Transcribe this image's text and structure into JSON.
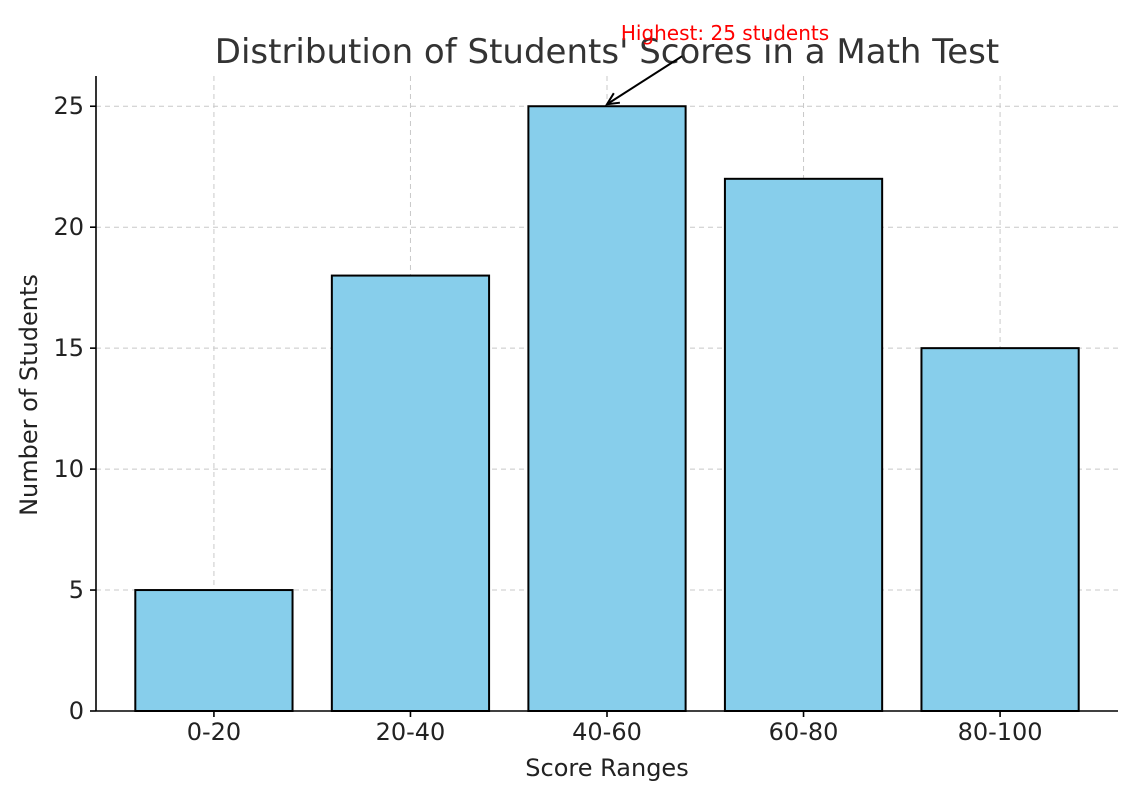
{
  "chart_data": {
    "type": "bar",
    "title": "Distribution of Students' Scores in a Math Test",
    "xlabel": "Score Ranges",
    "ylabel": "Number of Students",
    "categories": [
      "0-20",
      "20-40",
      "40-60",
      "60-80",
      "80-100"
    ],
    "values": [
      5,
      18,
      25,
      22,
      15
    ],
    "ylim": [
      0,
      26.25
    ],
    "yticks": [
      0,
      5,
      10,
      15,
      20,
      25
    ],
    "grid": true,
    "bar_color": "#87CEEB",
    "edge_color": "#000000",
    "annotation": {
      "text": "Highest: 25 students",
      "category": "40-60",
      "value": 25,
      "color": "#ff0000"
    }
  }
}
